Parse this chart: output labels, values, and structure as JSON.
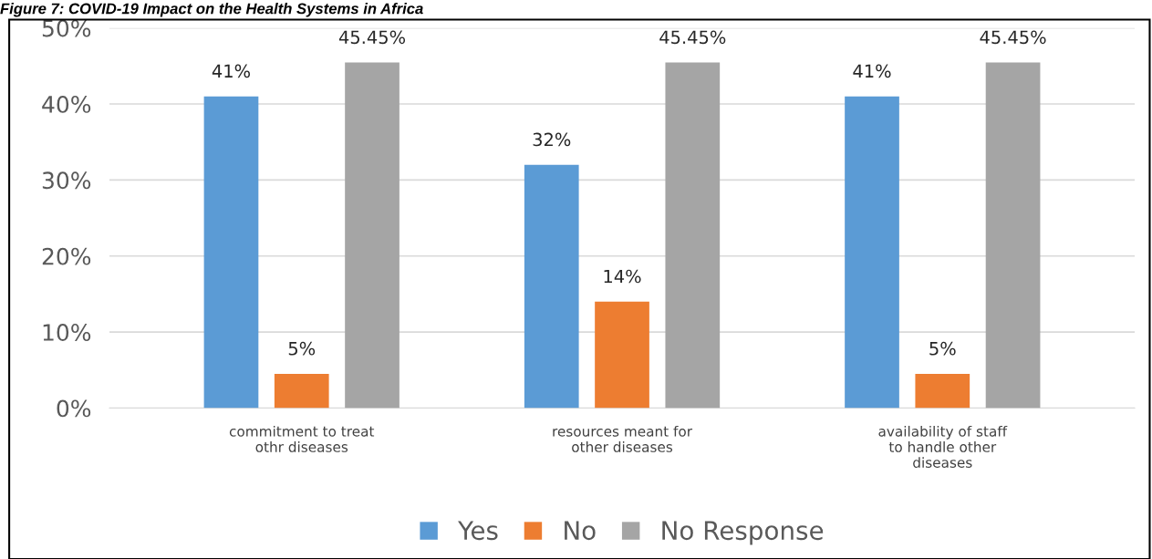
{
  "chart_data": {
    "type": "bar",
    "title": "Figure 7: COVID-19 Impact on the Health Systems in Africa",
    "categories": [
      "commitment to treat\nothr diseases",
      "resources meant for\nother diseases",
      "availability of staff\nto handle other\ndiseases"
    ],
    "series": [
      {
        "name": "Yes",
        "color": "#5b9bd5",
        "values": [
          41,
          32,
          41
        ],
        "value_labels": [
          "41%",
          "32%",
          "41%"
        ]
      },
      {
        "name": "No",
        "color": "#ed7d31",
        "values": [
          4.5,
          14,
          4.5
        ],
        "value_labels": [
          "5%",
          "14%",
          "5%"
        ]
      },
      {
        "name": "No Response",
        "color": "#a5a5a5",
        "values": [
          45.45,
          45.45,
          45.45
        ],
        "value_labels": [
          "45.45%",
          "45.45%",
          "45.45%"
        ]
      }
    ],
    "ylim": [
      0,
      50
    ],
    "yticks": [
      {
        "value": 0,
        "label": "0%"
      },
      {
        "value": 10,
        "label": "10%"
      },
      {
        "value": 20,
        "label": "20%"
      },
      {
        "value": 30,
        "label": "30%"
      },
      {
        "value": 40,
        "label": "40%"
      },
      {
        "value": 50,
        "label": "50%"
      }
    ],
    "grid": "y",
    "legend": "bottom"
  }
}
